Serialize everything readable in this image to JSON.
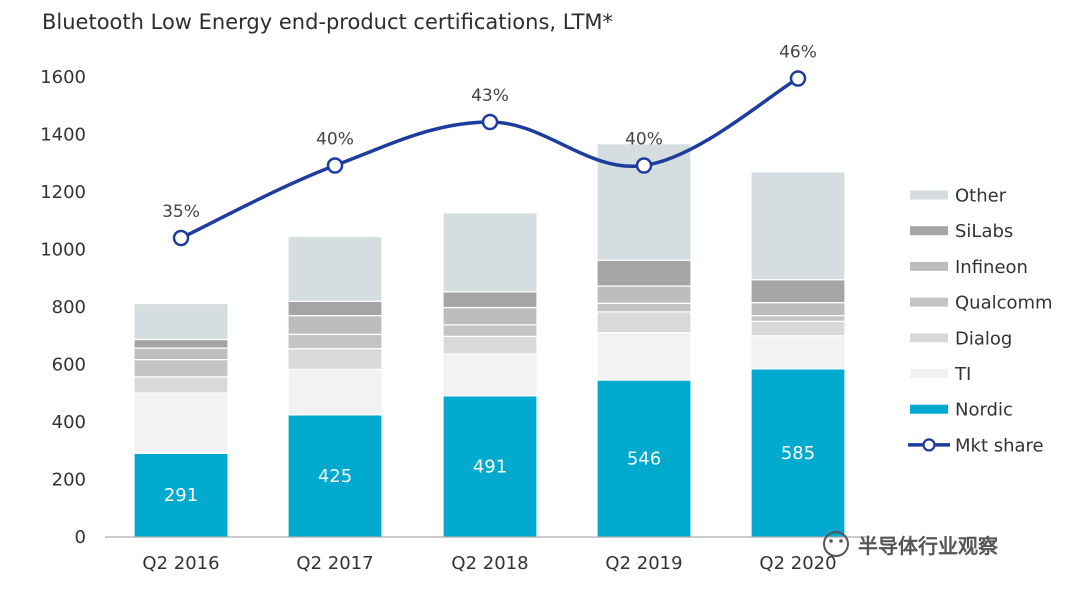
{
  "chart_data": {
    "type": "bar",
    "stacked": true,
    "title": "Bluetooth Low Energy end-product certifications, LTM*",
    "categories": [
      "Q2 2016",
      "Q2 2017",
      "Q2 2018",
      "Q2 2019",
      "Q2 2020"
    ],
    "ylim": [
      0,
      1600
    ],
    "yticks": [
      0,
      200,
      400,
      600,
      800,
      1000,
      1200,
      1400,
      1600
    ],
    "series": [
      {
        "name": "Nordic",
        "color": "#00a9ce",
        "values": [
          291,
          425,
          491,
          546,
          585
        ]
      },
      {
        "name": "TI",
        "color": "#f2f2f2",
        "values": [
          210,
          158,
          145,
          165,
          115
        ]
      },
      {
        "name": "Dialog",
        "color": "#d9d9d9",
        "values": [
          56,
          72,
          62,
          72,
          50
        ]
      },
      {
        "name": "Qualcomm",
        "color": "#c4c4c4",
        "values": [
          60,
          50,
          40,
          30,
          20
        ]
      },
      {
        "name": "Infineon",
        "color": "#bdbdbd",
        "values": [
          40,
          65,
          60,
          60,
          45
        ]
      },
      {
        "name": "SiLabs",
        "color": "#a5a5a5",
        "values": [
          30,
          50,
          55,
          90,
          80
        ]
      },
      {
        "name": "Other",
        "color": "#d6dde1",
        "values": [
          125,
          225,
          275,
          405,
          375
        ]
      }
    ],
    "line_series": {
      "name": "Mkt share",
      "color": "#1d3c9e",
      "values": [
        35,
        40,
        43,
        40,
        46
      ],
      "labels": [
        "35%",
        "40%",
        "43%",
        "40%",
        "46%"
      ]
    },
    "legend_order": [
      "Other",
      "SiLabs",
      "Infineon",
      "Qualcomm",
      "Dialog",
      "TI",
      "Nordic",
      "Mkt share"
    ],
    "legend_position": "right",
    "grid": false
  },
  "watermark": {
    "text": "半导体行业观察",
    "icon": "wechat-icon"
  }
}
